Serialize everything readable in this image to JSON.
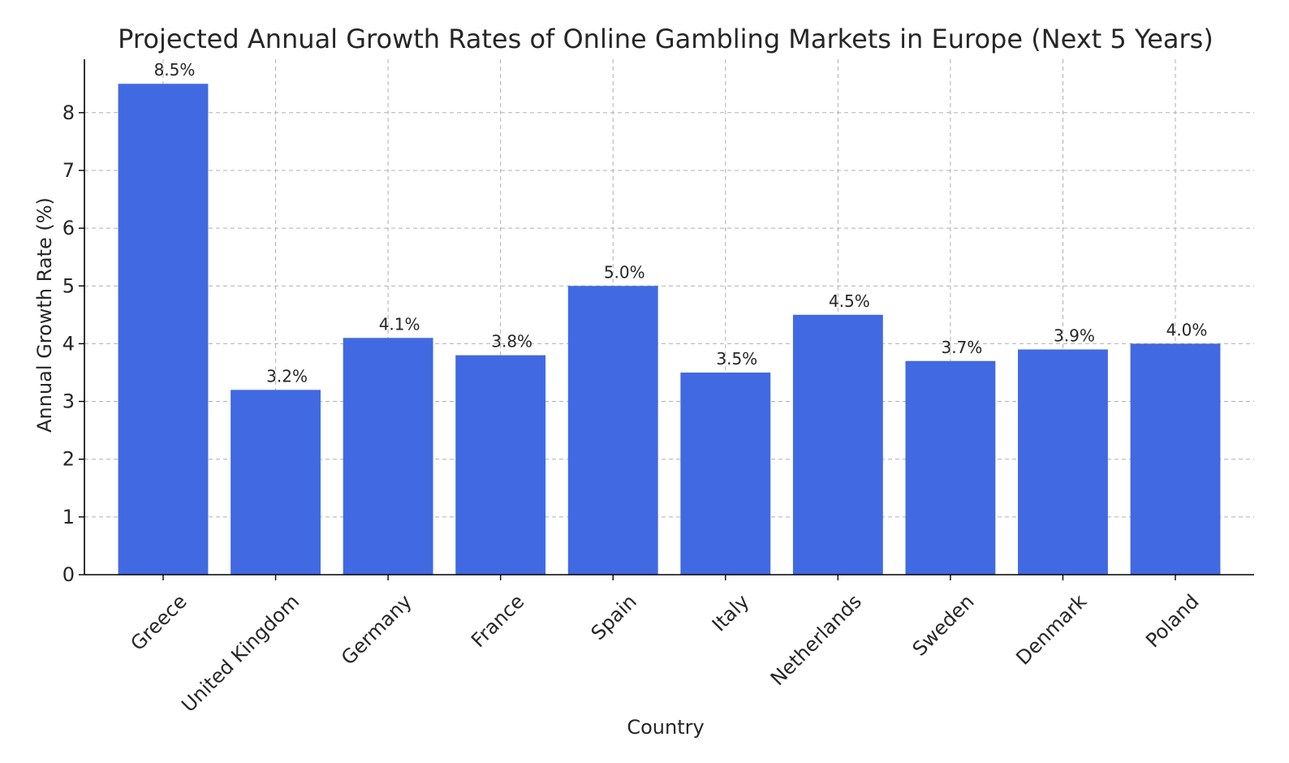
{
  "chart_data": {
    "type": "bar",
    "title": "Projected Annual Growth Rates of Online Gambling Markets in Europe (Next 5 Years)",
    "xlabel": "Country",
    "ylabel": "Annual Growth Rate (%)",
    "categories": [
      "Greece",
      "United Kingdom",
      "Germany",
      "France",
      "Spain",
      "Italy",
      "Netherlands",
      "Sweden",
      "Denmark",
      "Poland"
    ],
    "values": [
      8.5,
      3.2,
      4.1,
      3.8,
      5.0,
      3.5,
      4.5,
      3.7,
      3.9,
      4.0
    ],
    "data_labels": [
      "8.5%",
      "3.2%",
      "4.1%",
      "3.8%",
      "5.0%",
      "3.5%",
      "4.5%",
      "3.7%",
      "3.9%",
      "4.0%"
    ],
    "yticks": [
      "0",
      "1",
      "2",
      "3",
      "4",
      "5",
      "6",
      "7",
      "8"
    ],
    "ylim": [
      0,
      8.925
    ],
    "grid": true,
    "bar_color": "#4169e1",
    "x_tick_rotation_deg": 45
  }
}
